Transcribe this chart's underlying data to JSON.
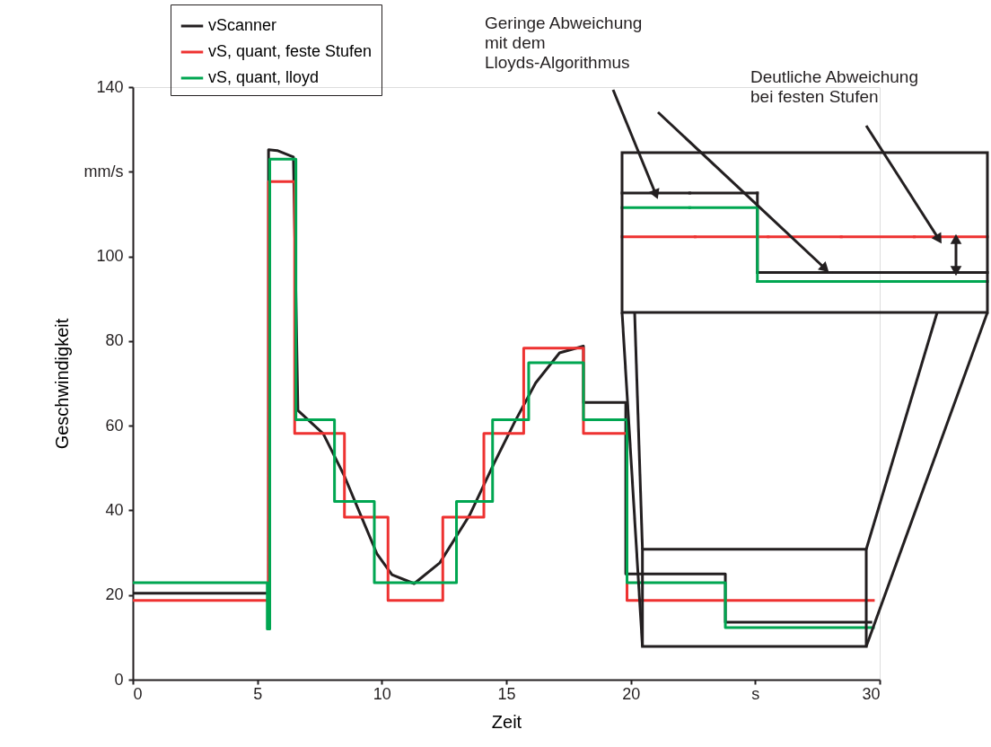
{
  "chart_data": {
    "type": "line",
    "xlabel": "Zeit",
    "ylabel": "Geschwindigkeit",
    "xlim": [
      0,
      30
    ],
    "xticks": [
      0,
      5,
      10,
      15,
      20,
      {
        "value": 25,
        "label": "s"
      },
      30
    ],
    "ylim": [
      0,
      140
    ],
    "yticks": [
      0,
      20,
      40,
      60,
      80,
      100,
      {
        "value": 120,
        "label": "mm/s"
      },
      140
    ],
    "grid": false,
    "legend": "top left",
    "marker": "none",
    "line_style": "solid",
    "annotations": [
      "Geringe Abweichung\nmit dem\nLloyds-Algorithmus",
      "Deutliche Abweichung\nbei festen Stufen"
    ],
    "series": [
      {
        "name": "vScanner",
        "color": "#231f20",
        "x": [
          0,
          5.45,
          5.45,
          5.8,
          6.45,
          6.63,
          7.65,
          8.49,
          9.2,
          9.8,
          10.41,
          11.3,
          12.33,
          13.53,
          14.5,
          15.34,
          16.18,
          17.14,
          18.1,
          18.1,
          19.8,
          19.8,
          23.8,
          23.8,
          29.7
        ],
        "values": [
          20.4,
          20.4,
          125.2,
          125,
          123.5,
          63.6,
          58.1,
          48.2,
          38.2,
          29.8,
          24.8,
          22.7,
          27.6,
          38.9,
          51.0,
          60.9,
          70.1,
          77.2,
          78.8,
          65.5,
          65.5,
          25.0,
          25.0,
          13.6,
          13.6
        ]
      },
      {
        "name": "vS, quant, feste Stufen",
        "color": "#ee3231",
        "x": [
          0,
          5.45,
          5.45,
          6.5,
          6.5,
          8.5,
          8.5,
          10.25,
          10.25,
          12.45,
          12.45,
          14.1,
          14.1,
          15.7,
          15.7,
          18.1,
          18.1,
          19.85,
          19.85,
          29.8
        ],
        "values": [
          18.7,
          18.7,
          117.7,
          117.7,
          58.2,
          58.2,
          38.4,
          38.4,
          18.7,
          18.7,
          38.4,
          38.4,
          58.2,
          58.2,
          78.3,
          78.3,
          58.2,
          58.2,
          18.7,
          18.7
        ]
      },
      {
        "name": "vS, quant, lloyd",
        "color": "#00a651",
        "x": [
          0,
          5.4,
          5.4,
          5.5,
          5.5,
          6.55,
          6.55,
          8.1,
          8.1,
          9.7,
          9.7,
          13.0,
          13.0,
          14.45,
          14.45,
          15.9,
          15.9,
          18.1,
          18.1,
          19.85,
          19.85,
          23.8,
          23.8,
          29.8
        ],
        "values": [
          22.9,
          22.9,
          12.0,
          12.0,
          123,
          123,
          61.4,
          61.4,
          42.1,
          42.1,
          22.9,
          22.9,
          42.1,
          42.1,
          61.4,
          61.4,
          74.9,
          74.9,
          61.4,
          61.4,
          22.9,
          22.9,
          12.3,
          12.3
        ]
      }
    ]
  }
}
